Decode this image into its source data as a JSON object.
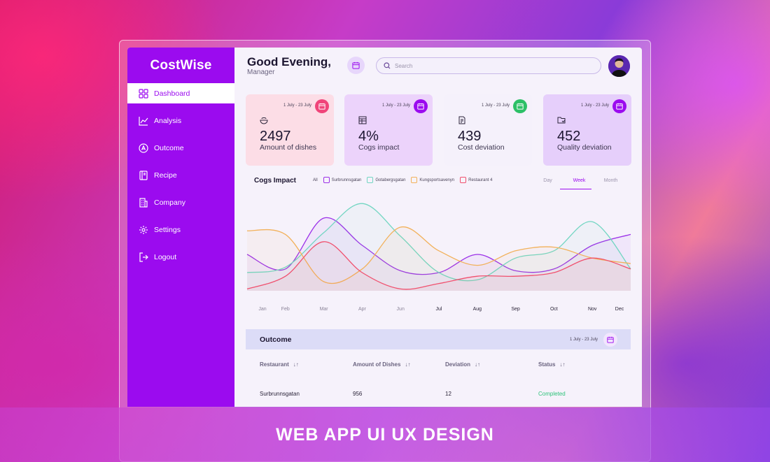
{
  "app": {
    "logo": "CostWise"
  },
  "sidebar": {
    "items": [
      {
        "label": "Dashboard",
        "icon": "grid-icon",
        "active": true
      },
      {
        "label": "Analysis",
        "icon": "chart-icon"
      },
      {
        "label": "Outcome",
        "icon": "outcome-icon"
      },
      {
        "label": "Recipe",
        "icon": "book-icon"
      },
      {
        "label": "Company",
        "icon": "building-icon"
      },
      {
        "label": "Settings",
        "icon": "gear-icon"
      },
      {
        "label": "Logout",
        "icon": "logout-icon"
      }
    ]
  },
  "header": {
    "greeting": "Good Evening,",
    "role": "Manager",
    "search_placeholder": "Search"
  },
  "cards": [
    {
      "date": "1 July - 23 July",
      "value": "2497",
      "label": "Amount of dishes",
      "bg": "#fcdde6",
      "btn": "#f0447a",
      "icon": "bowl-icon"
    },
    {
      "date": "1 July - 23 July",
      "value": "4%",
      "label": "Cogs impact",
      "bg": "#ecd3fb",
      "btn": "#9b0bef",
      "icon": "table-icon"
    },
    {
      "date": "1 July - 23 July",
      "value": "439",
      "label": "Cost deviation",
      "bg": "#f5f1fb",
      "btn": "#2dc067",
      "icon": "document-icon"
    },
    {
      "date": "1 July - 23 July",
      "value": "452",
      "label": "Quality deviation",
      "bg": "#e6cffb",
      "btn": "#9b0bef",
      "icon": "folder-icon"
    }
  ],
  "chart": {
    "title": "Cogs Impact",
    "legend_all": "All",
    "periods": [
      "Day",
      "Week",
      "Month"
    ],
    "active_period": "Week"
  },
  "chart_data": {
    "type": "line",
    "title": "Cogs Impact",
    "x": [
      "Jan",
      "Feb",
      "Mar",
      "Apr",
      "Jun",
      "Jul",
      "Aug",
      "Sep",
      "Oct",
      "Nov",
      "Dec"
    ],
    "series": [
      {
        "name": "Surbrunnsgatan",
        "color": "#9b30e8",
        "values": [
          20,
          12,
          40,
          25,
          11,
          10,
          20,
          11,
          12,
          25,
          31
        ]
      },
      {
        "name": "Gotabergsgatan",
        "color": "#72d6c2",
        "values": [
          10,
          13,
          32,
          48,
          30,
          10,
          6,
          18,
          22,
          38,
          12
        ]
      },
      {
        "name": "Kungsportsavenyn",
        "color": "#f2b15a",
        "values": [
          33,
          31,
          5,
          12,
          35,
          22,
          14,
          22,
          24,
          18,
          15
        ]
      },
      {
        "name": "Restaurant 4",
        "color": "#f0506e",
        "values": [
          1,
          8,
          27,
          10,
          1,
          4,
          8,
          8,
          10,
          18,
          12
        ]
      }
    ]
  },
  "outcome": {
    "title": "Outcome",
    "date": "1 July - 23 July",
    "columns": [
      "Restaurant",
      "Amount of Dishes",
      "Deviation",
      "Status"
    ],
    "rows": [
      {
        "restaurant": "Surbrunnsgatan",
        "dishes": "956",
        "deviation": "12",
        "status": "Completed"
      }
    ]
  },
  "banner": {
    "text": "WEB APP UI UX DESIGN"
  }
}
